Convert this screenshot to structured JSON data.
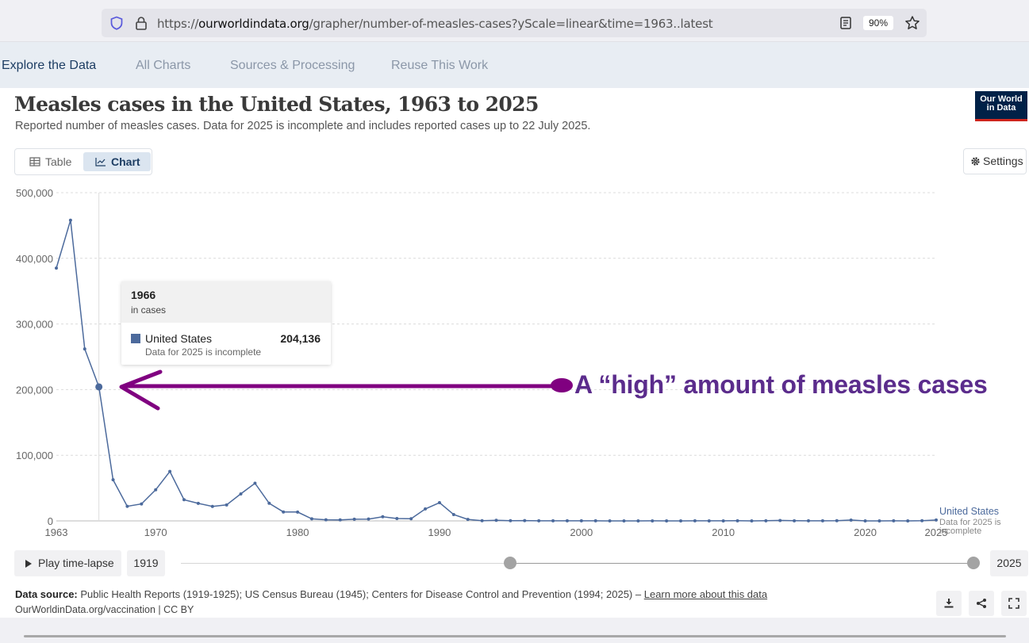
{
  "browser": {
    "url_prefix": "https://",
    "url_domain": "ourworldindata.org",
    "url_path": "/grapher/number-of-measles-cases?yScale=linear&time=1963..latest",
    "zoom": "90%"
  },
  "nav": {
    "tabs": [
      {
        "label": "Explore the Data",
        "active": true
      },
      {
        "label": "All Charts",
        "active": false
      },
      {
        "label": "Sources & Processing",
        "active": false
      },
      {
        "label": "Reuse This Work",
        "active": false
      }
    ]
  },
  "header": {
    "title": "Measles cases in the United States, 1963 to 2025",
    "subtitle": "Reported number of measles cases. Data for 2025 is incomplete and includes reported cases up to 22 July 2025.",
    "logo_line1": "Our World",
    "logo_line2": "in Data"
  },
  "view_toggle": {
    "table_label": "Table",
    "chart_label": "Chart",
    "active": "Chart"
  },
  "settings_label": "Settings",
  "tooltip": {
    "year": "1966",
    "unit": "in cases",
    "entity": "United States",
    "value": "204,136",
    "note": "Data for 2025 is incomplete"
  },
  "annotation": {
    "text": "A “high” amount of measles cases",
    "color": "#800080"
  },
  "timeline": {
    "play_label": "Play time-lapse",
    "start_label": "1919",
    "end_label": "2025"
  },
  "footer": {
    "source_label": "Data source:",
    "source_text": "Public Health Reports (1919-1925); US Census Bureau (1945); Centers for Disease Control and Prevention (1994; 2025) –",
    "learn_more": "Learn more about this data",
    "cc_line": "OurWorldinData.org/vaccination | CC BY"
  },
  "chart_data": {
    "type": "line",
    "xlim": [
      1963,
      2025
    ],
    "ylim": [
      0,
      500000
    ],
    "y_ticks": [
      0,
      100000,
      200000,
      300000,
      400000,
      500000
    ],
    "y_tick_labels": [
      "0",
      "100,000",
      "200,000",
      "300,000",
      "400,000",
      "500,000"
    ],
    "x_ticks": [
      1963,
      1970,
      1980,
      1990,
      2000,
      2010,
      2020,
      2025
    ],
    "x_tick_labels": [
      "1963",
      "1970",
      "1980",
      "1990",
      "2000",
      "2010",
      "2020",
      "2025"
    ],
    "grid": true,
    "highlight_year": 1966,
    "color": "#4c6a9c",
    "series": [
      {
        "name": "United States",
        "label": "United States",
        "label_note": [
          "Data for 2025 is",
          "incomplete"
        ],
        "x": [
          1963,
          1964,
          1965,
          1966,
          1967,
          1968,
          1969,
          1970,
          1971,
          1972,
          1973,
          1974,
          1975,
          1976,
          1977,
          1978,
          1979,
          1980,
          1981,
          1982,
          1983,
          1984,
          1985,
          1986,
          1987,
          1988,
          1989,
          1990,
          1991,
          1992,
          1993,
          1994,
          1995,
          1996,
          1997,
          1998,
          1999,
          2000,
          2001,
          2002,
          2003,
          2004,
          2005,
          2006,
          2007,
          2008,
          2009,
          2010,
          2011,
          2012,
          2013,
          2014,
          2015,
          2016,
          2017,
          2018,
          2019,
          2020,
          2021,
          2022,
          2023,
          2024,
          2025
        ],
        "values": [
          385156,
          458083,
          261904,
          204136,
          62705,
          22231,
          25826,
          47351,
          75290,
          32275,
          26690,
          22094,
          24374,
          41126,
          57345,
          26871,
          13597,
          13506,
          3124,
          1714,
          1497,
          2587,
          2822,
          6282,
          3655,
          3396,
          18193,
          27786,
          9643,
          2237,
          312,
          963,
          309,
          508,
          138,
          100,
          100,
          86,
          116,
          44,
          56,
          37,
          66,
          55,
          43,
          140,
          71,
          63,
          220,
          55,
          187,
          667,
          188,
          86,
          120,
          375,
          1274,
          13,
          49,
          121,
          59,
          285,
          1309
        ]
      }
    ]
  }
}
